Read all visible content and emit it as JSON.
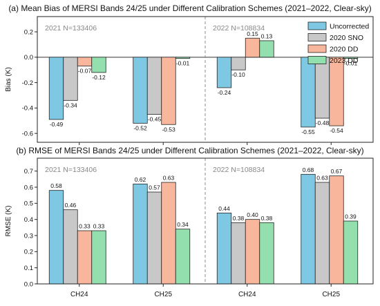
{
  "colors": {
    "Uncorrected": "#7ec8e3",
    "2020 SNO": "#c8c8c8",
    "2020 DD": "#f8b79c",
    "2023 DD": "#93dfae",
    "separator": "#888888"
  },
  "legend": [
    "Uncorrected",
    "2020 SNO",
    "2020 DD",
    "2023 DD"
  ],
  "chart_data": [
    {
      "type": "bar",
      "title": "(a) Mean Bias of MERSI Bands 24/25 under Different Calibration Schemes (2021–2022, Clear-sky)",
      "ylabel": "Bias (K)",
      "ylim": [
        -0.67,
        0.32
      ],
      "yticks": [
        -0.6,
        -0.4,
        -0.2,
        0.0,
        0.2
      ],
      "ytick_labels": [
        "-0.6",
        "-0.4",
        "-0.2",
        "0.0",
        "0.2"
      ],
      "zero_line": true,
      "groups_text": [
        "2021 N=133406",
        "2022 N=108834"
      ],
      "categories": [
        "CH24",
        "CH25",
        "CH24",
        "CH25"
      ],
      "series": [
        {
          "name": "Uncorrected",
          "values": [
            -0.49,
            -0.52,
            -0.24,
            -0.55
          ],
          "labels": [
            "-0.49",
            "-0.52",
            "-0.24",
            "-0.55"
          ]
        },
        {
          "name": "2020 SNO",
          "values": [
            -0.34,
            -0.45,
            -0.1,
            -0.48
          ],
          "labels": [
            "-0.34",
            "-0.45",
            "-0.10",
            "-0.48"
          ]
        },
        {
          "name": "2020 DD",
          "values": [
            -0.07,
            -0.53,
            0.15,
            -0.54
          ],
          "labels": [
            "-0.07",
            "-0.53",
            "0.15",
            "-0.54"
          ]
        },
        {
          "name": "2023 DD",
          "values": [
            -0.12,
            -0.01,
            0.13,
            -0.01
          ],
          "labels": [
            "-0.12",
            "-0.01",
            "0.13",
            "-0.01"
          ]
        }
      ],
      "legend_position": "top-right"
    },
    {
      "type": "bar",
      "title": "(b) RMSE of MERSI Bands 24/25 under Different Calibration Schemes (2021–2022, Clear-sky)",
      "ylabel": "RMSE (K)",
      "ylim": [
        0.0,
        0.78
      ],
      "yticks": [
        0.0,
        0.1,
        0.2,
        0.3,
        0.4,
        0.5,
        0.6,
        0.7
      ],
      "ytick_labels": [
        "0.0",
        "0.1",
        "0.2",
        "0.3",
        "0.4",
        "0.5",
        "0.6",
        "0.7"
      ],
      "zero_line": false,
      "groups_text": [
        "2021 N=133406",
        "2022 N=108834"
      ],
      "categories": [
        "CH24",
        "CH25",
        "CH24",
        "CH25"
      ],
      "series": [
        {
          "name": "Uncorrected",
          "values": [
            0.58,
            0.62,
            0.44,
            0.68
          ],
          "labels": [
            "0.58",
            "0.62",
            "0.44",
            "0.68"
          ]
        },
        {
          "name": "2020 SNO",
          "values": [
            0.46,
            0.57,
            0.38,
            0.63
          ],
          "labels": [
            "0.46",
            "0.57",
            "0.38",
            "0.63"
          ]
        },
        {
          "name": "2020 DD",
          "values": [
            0.33,
            0.63,
            0.4,
            0.67
          ],
          "labels": [
            "0.33",
            "0.63",
            "0.40",
            "0.67"
          ]
        },
        {
          "name": "2023 DD",
          "values": [
            0.33,
            0.34,
            0.38,
            0.39
          ],
          "labels": [
            "0.33",
            "0.34",
            "0.38",
            "0.39"
          ]
        }
      ]
    }
  ]
}
